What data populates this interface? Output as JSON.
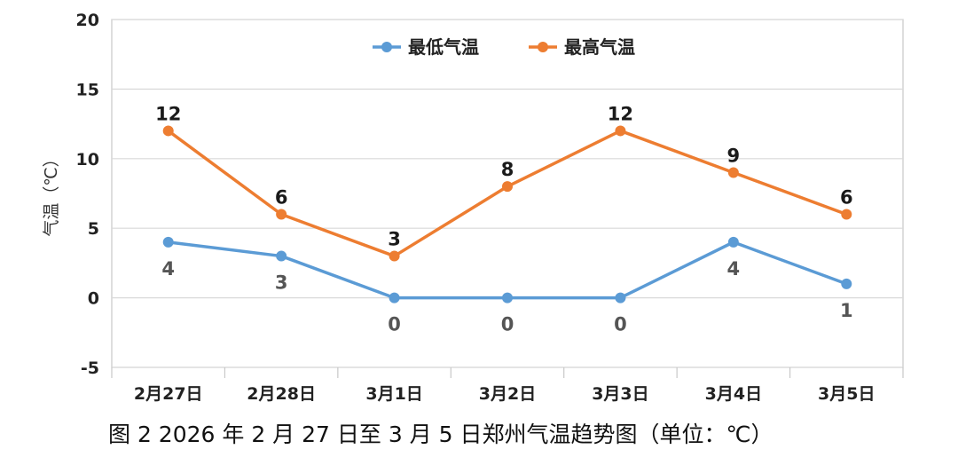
{
  "chart_data": {
    "type": "line",
    "categories": [
      "2月27日",
      "2月28日",
      "3月1日",
      "3月2日",
      "3月3日",
      "3月4日",
      "3月5日"
    ],
    "ylabel": "气温（℃）",
    "ylim": [
      -5,
      20
    ],
    "yticks": [
      -5,
      0,
      5,
      10,
      15,
      20
    ],
    "grid": true,
    "legend_position": "top-center",
    "series": [
      {
        "name": "最低气温",
        "values": [
          4,
          3,
          0,
          0,
          0,
          4,
          1
        ],
        "color": "#5b9bd5",
        "labels": [
          "4",
          "3",
          "0",
          "0",
          "0",
          "4",
          "1"
        ]
      },
      {
        "name": "最高气温",
        "values": [
          12,
          6,
          3,
          8,
          12,
          9,
          6
        ],
        "color": "#ed7d31",
        "labels": [
          "12",
          "6",
          "3",
          "8",
          "12",
          "9",
          "6"
        ]
      }
    ]
  },
  "caption": "图 2   2026 年 2 月 27 日至 3 月 5 日郑州气温趋势图（单位：℃）"
}
